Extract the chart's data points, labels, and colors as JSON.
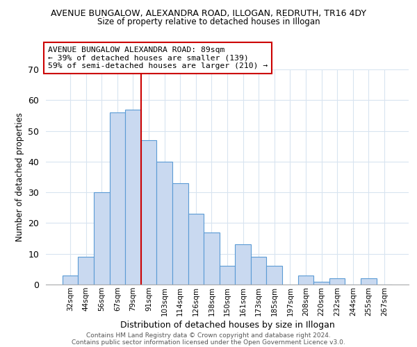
{
  "title1": "AVENUE BUNGALOW, ALEXANDRA ROAD, ILLOGAN, REDRUTH, TR16 4DY",
  "title2": "Size of property relative to detached houses in Illogan",
  "xlabel": "Distribution of detached houses by size in Illogan",
  "ylabel": "Number of detached properties",
  "bar_labels": [
    "32sqm",
    "44sqm",
    "56sqm",
    "67sqm",
    "79sqm",
    "91sqm",
    "103sqm",
    "114sqm",
    "126sqm",
    "138sqm",
    "150sqm",
    "161sqm",
    "173sqm",
    "185sqm",
    "197sqm",
    "208sqm",
    "220sqm",
    "232sqm",
    "244sqm",
    "255sqm",
    "267sqm"
  ],
  "bar_values": [
    3,
    9,
    30,
    56,
    57,
    47,
    40,
    33,
    23,
    17,
    6,
    13,
    9,
    6,
    0,
    3,
    1,
    2,
    0,
    2,
    0
  ],
  "bar_color": "#c9d9f0",
  "bar_edge_color": "#5b9bd5",
  "vline_x_idx": 5,
  "vline_color": "#cc0000",
  "annotation_text": "AVENUE BUNGALOW ALEXANDRA ROAD: 89sqm\n← 39% of detached houses are smaller (139)\n59% of semi-detached houses are larger (210) →",
  "annotation_box_color": "#ffffff",
  "annotation_box_edge_color": "#cc0000",
  "ylim": [
    0,
    70
  ],
  "yticks": [
    0,
    10,
    20,
    30,
    40,
    50,
    60,
    70
  ],
  "footer1": "Contains HM Land Registry data © Crown copyright and database right 2024.",
  "footer2": "Contains public sector information licensed under the Open Government Licence v3.0.",
  "background_color": "#ffffff",
  "grid_color": "#d8e4f0"
}
